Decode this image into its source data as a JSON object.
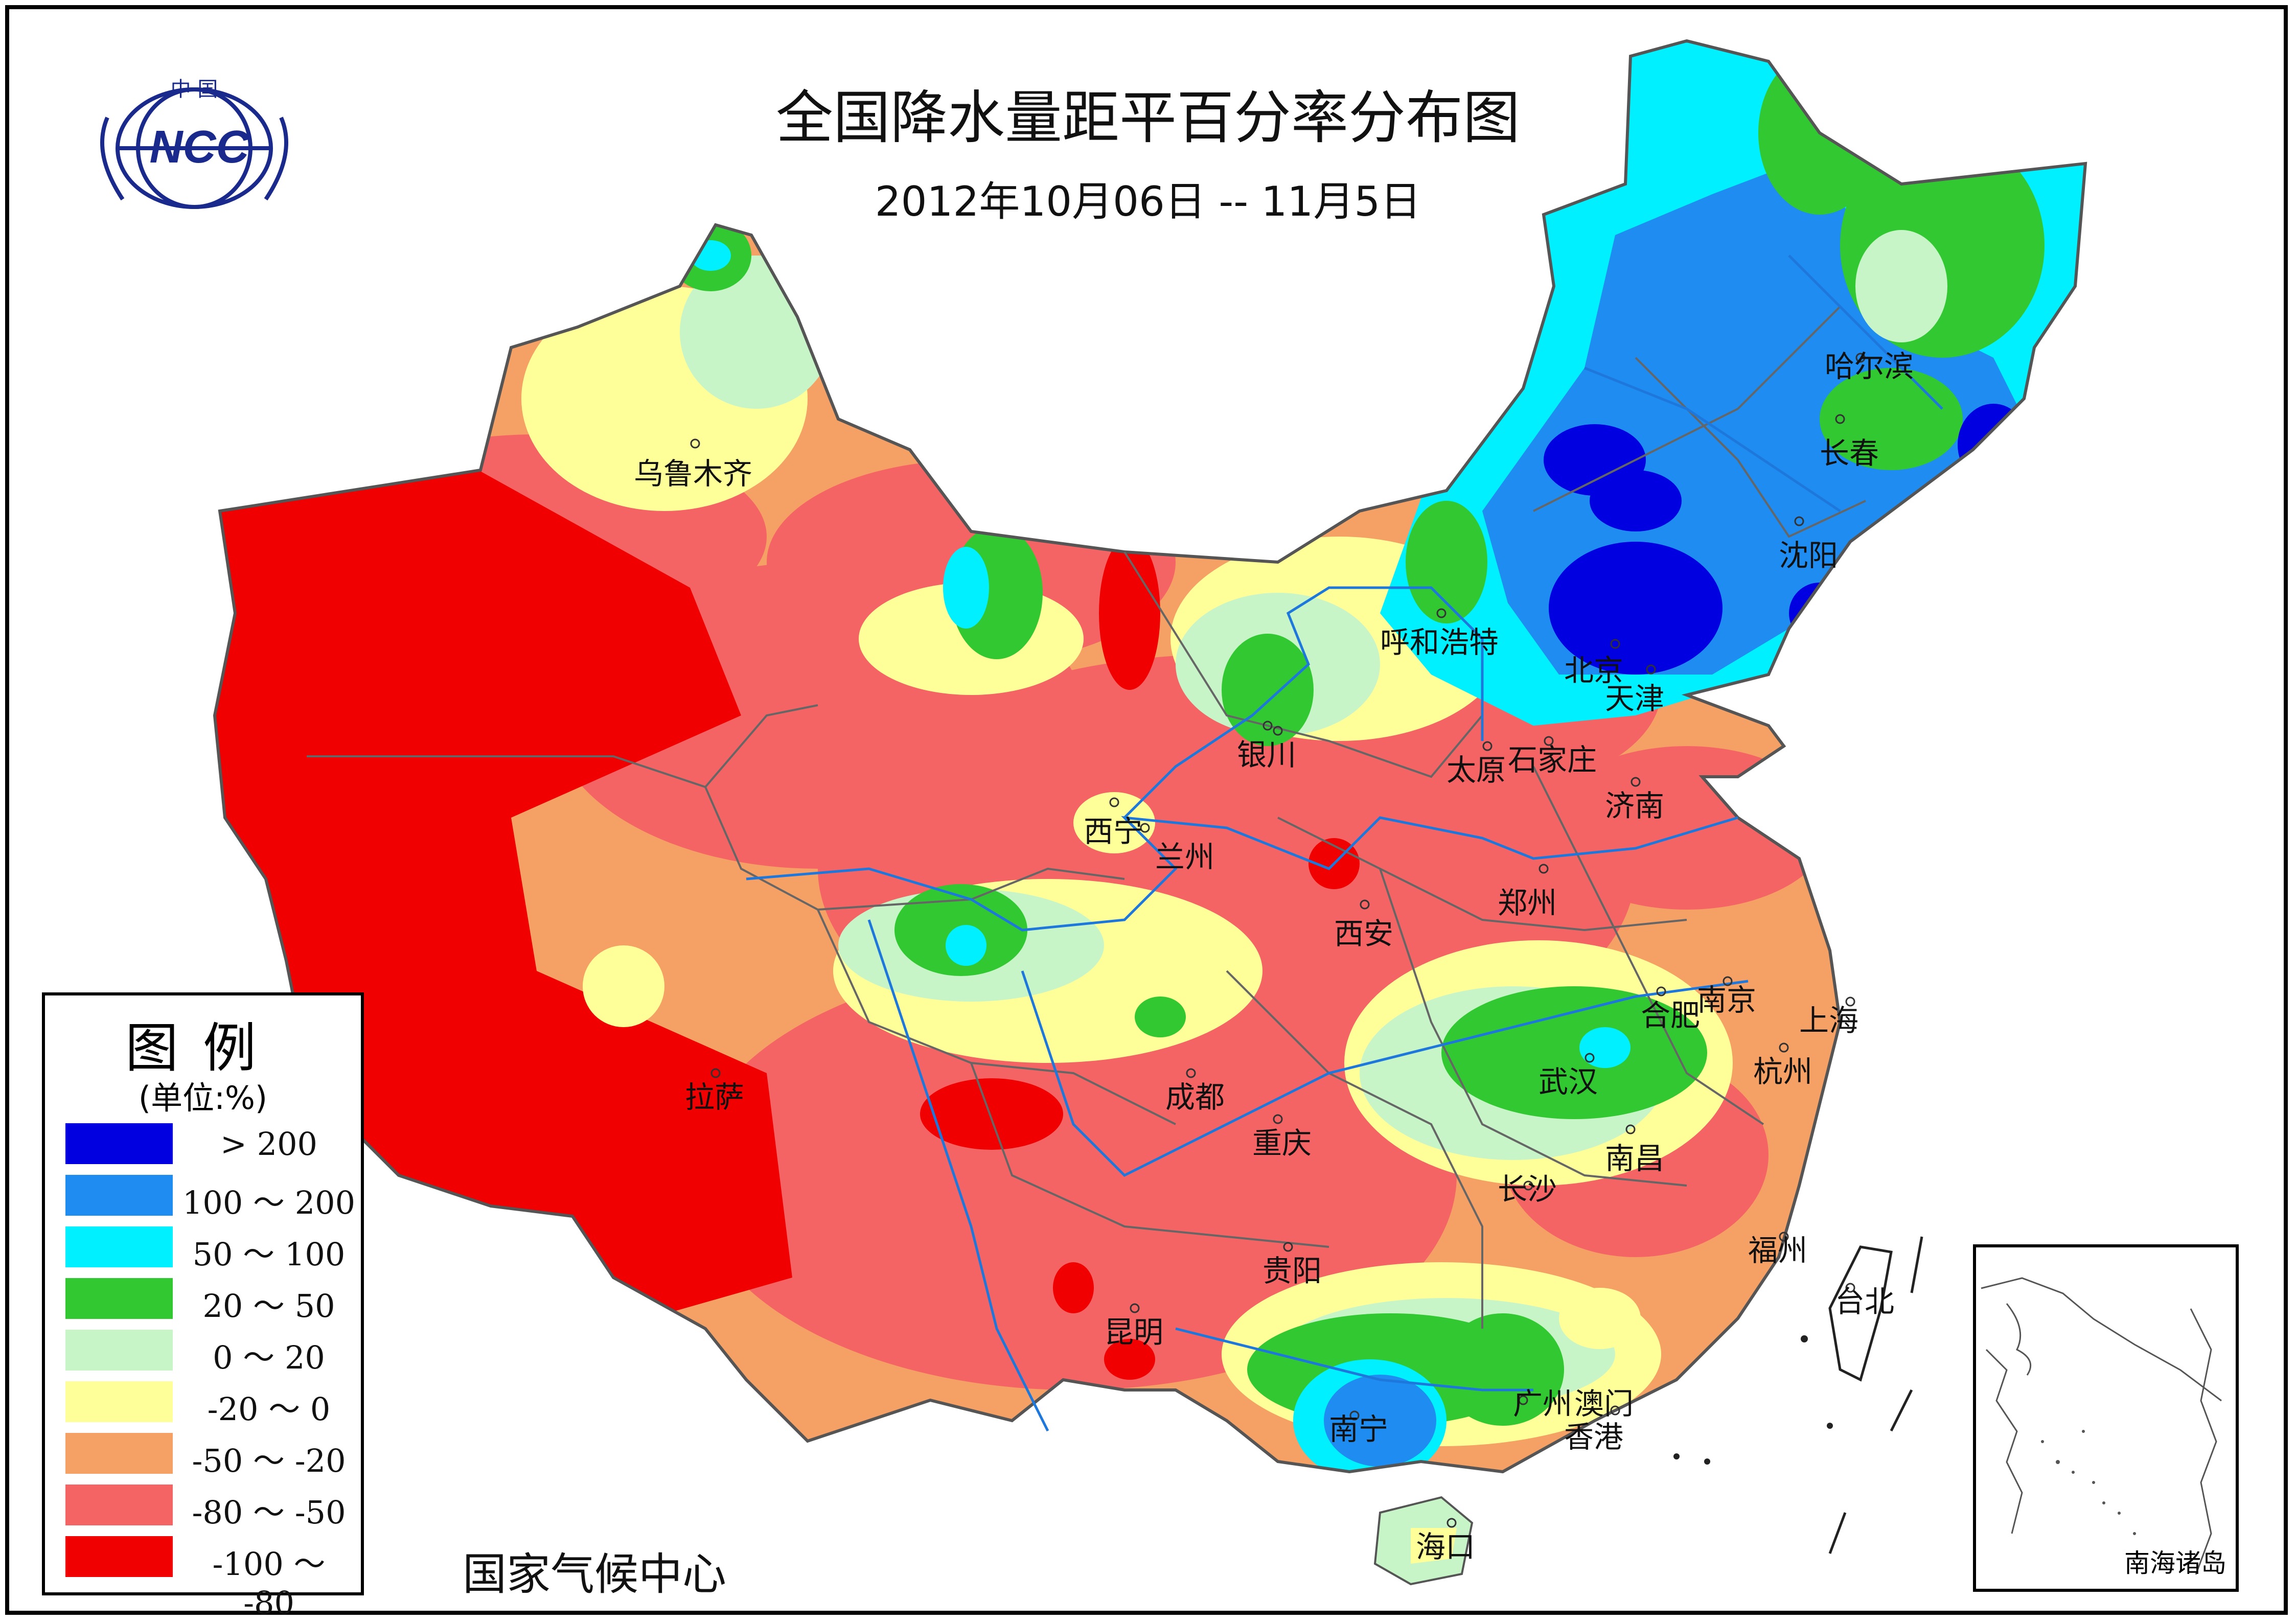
{
  "title": "全国降水量距平百分率分布图",
  "subtitle": "2012年10月06日 -- 11月5日",
  "credit": "国家气候中心",
  "logo": {
    "top_text": "中 国",
    "text": "NCC"
  },
  "legend": {
    "title": "图例",
    "unit": "(单位:%)",
    "items": [
      {
        "label": "> 200",
        "color": "#0000e0"
      },
      {
        "label": "100 ～ 200",
        "color": "#1e8cf0"
      },
      {
        "label": "50 ～ 100",
        "color": "#00f0ff"
      },
      {
        "label": "20 ～ 50",
        "color": "#32c832"
      },
      {
        "label": "0 ～ 20",
        "color": "#c8f5c8"
      },
      {
        "label": "-20 ～ 0",
        "color": "#ffff9a"
      },
      {
        "label": "-50 ～ -20",
        "color": "#f5a064"
      },
      {
        "label": "-80 ～ -50",
        "color": "#f56464"
      },
      {
        "label": "-100 ～ -80",
        "color": "#f00000"
      }
    ]
  },
  "cities": {
    "wulumuqi": "乌鲁木齐",
    "lasa": "拉萨",
    "xining": "西宁",
    "lanzhou": "兰州",
    "yinchuan": "银川",
    "huhehaote": "呼和浩特",
    "beijing": "北京",
    "tianjin": "天津",
    "shijiazhuang": "石家庄",
    "taiyuan": "太原",
    "jinan": "济南",
    "zhengzhou": "郑州",
    "xian": "西安",
    "chengdu": "成都",
    "chongqing": "重庆",
    "wuhan": "武汉",
    "hefei": "合肥",
    "nanjing": "南京",
    "shanghai": "上海",
    "hangzhou": "杭州",
    "nanchang": "南昌",
    "changsha": "长沙",
    "fuzhou": "福州",
    "guiyang": "贵阳",
    "kunming": "昆明",
    "nanning": "南宁",
    "guangzhou": "广州",
    "aomen": "澳门",
    "xianggang": "香港",
    "haikou": "海口",
    "taibei": "台北",
    "haerbin": "哈尔滨",
    "changchun": "长春",
    "shenyang": "沈阳"
  },
  "inset_label": "南海诸岛"
}
